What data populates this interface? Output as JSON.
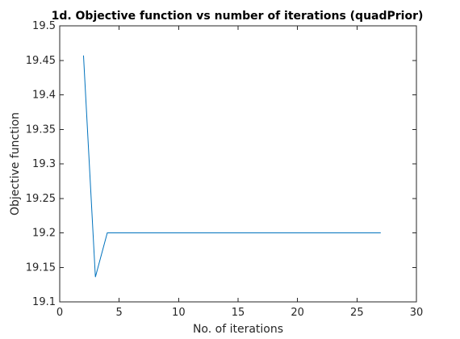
{
  "chart_data": {
    "type": "line",
    "title": "1d. Objective function vs number of iterations (quadPrior)",
    "xlabel": "No. of iterations",
    "ylabel": "Objective function",
    "xlim": [
      0,
      30
    ],
    "ylim": [
      19.1,
      19.5
    ],
    "x_ticks": [
      "0",
      "5",
      "10",
      "15",
      "20",
      "25",
      "30"
    ],
    "y_ticks": [
      "19.1",
      "19.15",
      "19.2",
      "19.25",
      "19.3",
      "19.35",
      "19.4",
      "19.45",
      "19.5"
    ],
    "grid": false,
    "series": [
      {
        "color": "#0072bd",
        "x": [
          2,
          3,
          4,
          5,
          6,
          7,
          8,
          9,
          10,
          11,
          12,
          13,
          14,
          15,
          16,
          17,
          18,
          19,
          20,
          21,
          22,
          23,
          24,
          25,
          26,
          27
        ],
        "y": [
          19.457,
          19.136,
          19.2,
          19.2,
          19.2,
          19.2,
          19.2,
          19.2,
          19.2,
          19.2,
          19.2,
          19.2,
          19.2,
          19.2,
          19.2,
          19.2,
          19.2,
          19.2,
          19.2,
          19.2,
          19.2,
          19.2,
          19.2,
          19.2,
          19.2,
          19.2
        ]
      }
    ]
  }
}
